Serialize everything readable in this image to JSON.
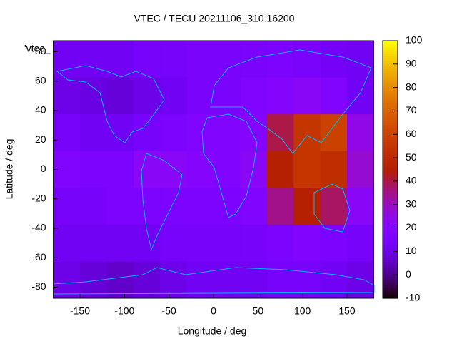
{
  "chart_data": {
    "type": "heatmap",
    "title": "VTEC / TECU 20211106_310.16200",
    "legend_label": "'vtec_",
    "x_label": "Longitude / deg",
    "y_label": "Latitude / deg",
    "x": [
      -165,
      -135,
      -105,
      -75,
      -45,
      -15,
      15,
      45,
      75,
      105,
      135,
      165
    ],
    "y": [
      75,
      50,
      25,
      0,
      -25,
      -50,
      -75
    ],
    "values": [
      [
        12,
        12,
        12,
        14,
        14,
        15,
        15,
        15,
        16,
        15,
        13,
        12
      ],
      [
        10,
        9,
        8,
        10,
        12,
        15,
        15,
        18,
        20,
        22,
        18,
        12
      ],
      [
        14,
        12,
        12,
        14,
        16,
        18,
        18,
        20,
        40,
        55,
        60,
        25
      ],
      [
        18,
        16,
        16,
        22,
        22,
        20,
        18,
        22,
        45,
        55,
        52,
        28
      ],
      [
        14,
        14,
        16,
        16,
        16,
        16,
        16,
        18,
        35,
        45,
        38,
        22
      ],
      [
        12,
        12,
        12,
        12,
        14,
        14,
        14,
        14,
        16,
        18,
        16,
        14
      ],
      [
        10,
        8,
        6,
        8,
        10,
        12,
        12,
        12,
        14,
        14,
        12,
        10
      ]
    ],
    "xlim": [
      -180,
      180
    ],
    "ylim": [
      -87.5,
      87.5
    ],
    "xticks": [
      -150,
      -100,
      -50,
      0,
      50,
      100,
      150
    ],
    "yticks": [
      -80,
      -60,
      -40,
      -20,
      0,
      20,
      40,
      60,
      80
    ],
    "cblim": [
      -10,
      100
    ],
    "cbticks": [
      -10,
      0,
      10,
      20,
      30,
      40,
      50,
      60,
      70,
      80,
      90,
      100
    ]
  }
}
